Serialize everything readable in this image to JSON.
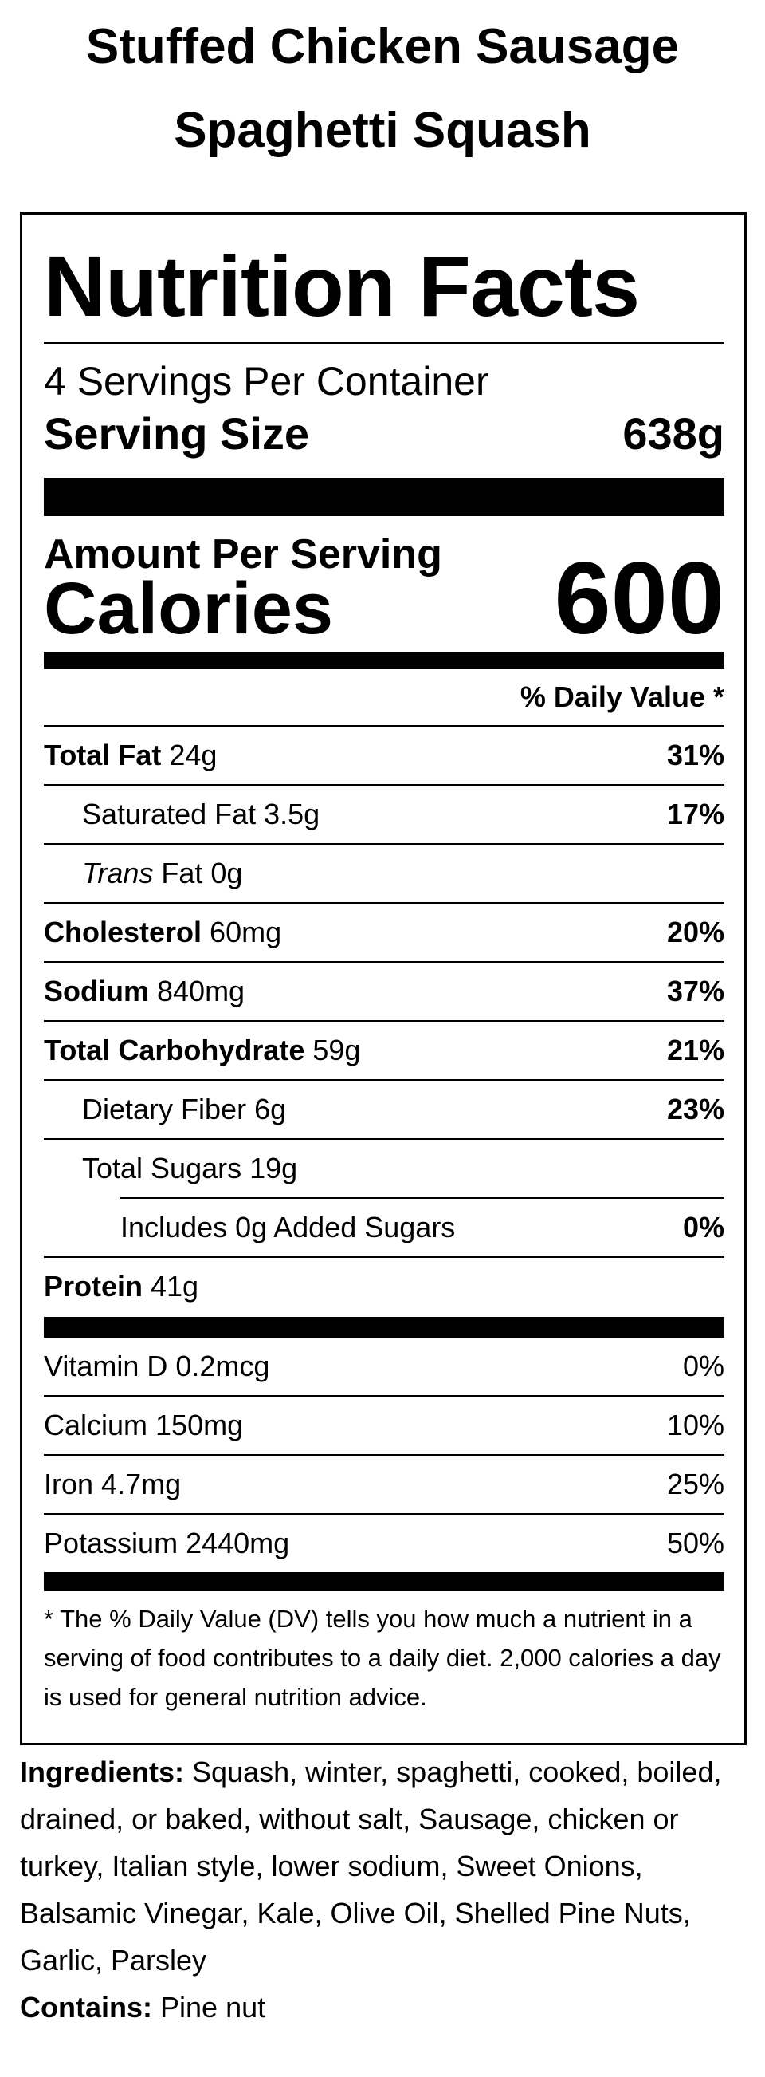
{
  "title": "Stuffed Chicken Sausage Spaghetti Squash",
  "label": {
    "heading": "Nutrition Facts",
    "servings": "4 Servings Per Container",
    "serving_size_label": "Serving Size",
    "serving_size": "638g",
    "amount_label": "Amount Per Serving",
    "calories_label": "Calories",
    "calories": "600",
    "dv_header": "% Daily Value *",
    "nutrients": [
      {
        "name": "Total Fat",
        "amount": "24g",
        "dv": "31%"
      },
      {
        "name": "Saturated Fat",
        "amount": "3.5g",
        "dv": "17%"
      },
      {
        "italic": "Trans",
        "name": "Fat",
        "amount": "0g"
      },
      {
        "name": "Cholesterol",
        "amount": "60mg",
        "dv": "20%"
      },
      {
        "name": "Sodium",
        "amount": "840mg",
        "dv": "37%"
      },
      {
        "name": "Total Carbohydrate",
        "amount": "59g",
        "dv": "21%"
      },
      {
        "name": "Dietary Fiber",
        "amount": "6g",
        "dv": "23%"
      },
      {
        "name": "Total Sugars",
        "amount": "19g"
      },
      {
        "name": "Includes 0g Added Sugars",
        "dv": "0%"
      },
      {
        "name": "Protein",
        "amount": "41g"
      }
    ],
    "vitamins": [
      {
        "name": "Vitamin D",
        "amount": "0.2mcg",
        "dv": "0%"
      },
      {
        "name": "Calcium",
        "amount": "150mg",
        "dv": "10%"
      },
      {
        "name": "Iron",
        "amount": "4.7mg",
        "dv": "25%"
      },
      {
        "name": "Potassium",
        "amount": "2440mg",
        "dv": "50%"
      }
    ],
    "footnote": "* The % Daily Value (DV) tells you how much a nutrient in a serving of food contributes to a daily diet. 2,000 calories a day is used for general nutrition advice."
  },
  "ingredients": {
    "label": "Ingredients:",
    "text": "Squash, winter, spaghetti, cooked, boiled, drained, or baked, without salt, Sausage, chicken or turkey, Italian style, lower sodium, Sweet Onions, Balsamic Vinegar, Kale, Olive Oil, Shelled Pine Nuts, Garlic, Parsley"
  },
  "contains": {
    "label": "Contains:",
    "text": "Pine nut"
  }
}
